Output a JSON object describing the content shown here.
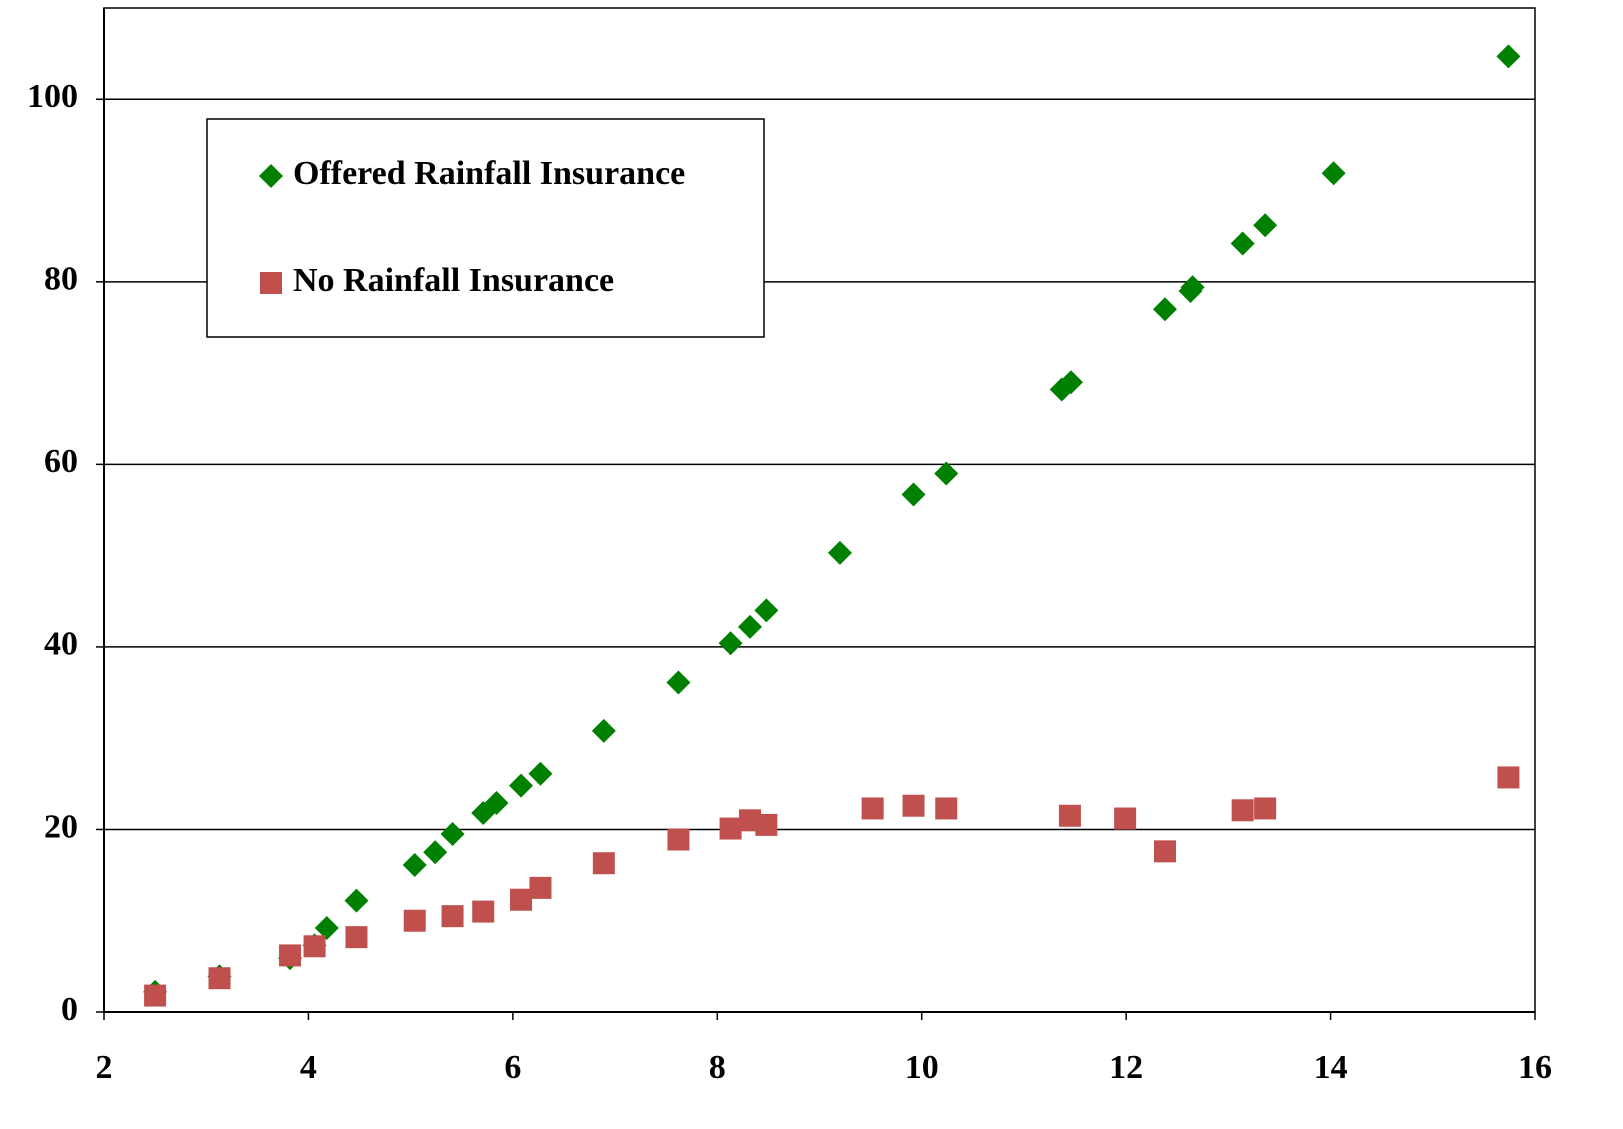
{
  "chart_data": {
    "type": "scatter",
    "xlim": [
      2,
      16
    ],
    "xticks": [
      2,
      4,
      6,
      8,
      10,
      12,
      14,
      16
    ],
    "ylim": [
      0,
      110
    ],
    "yticks": [
      0,
      20,
      40,
      60,
      80,
      100
    ],
    "grid": true,
    "legend": "top-left",
    "series": [
      {
        "name": "Offered Rainfall Insurance",
        "color": "#008000",
        "marker": "diamond",
        "x": [
          2.5,
          3.13,
          3.82,
          4.06,
          4.18,
          4.47,
          5.04,
          5.24,
          5.41,
          5.71,
          5.84,
          6.08,
          6.27,
          6.89,
          7.62,
          8.13,
          8.32,
          8.48,
          9.2,
          9.92,
          10.24,
          11.37,
          11.46,
          12.38,
          12.63,
          12.65,
          13.14,
          13.36,
          14.03,
          15.74
        ],
        "values": [
          2.2,
          3.9,
          5.9,
          7.3,
          9.2,
          12.2,
          16.1,
          17.5,
          19.5,
          21.8,
          22.9,
          24.8,
          26.1,
          30.8,
          36.1,
          40.4,
          42.2,
          44.0,
          50.3,
          56.7,
          59.0,
          68.2,
          69.0,
          77.0,
          79.0,
          79.4,
          84.2,
          86.2,
          91.9,
          104.7
        ]
      },
      {
        "name": "No Rainfall Insurance",
        "color": "#c0504d",
        "marker": "square",
        "x": [
          2.5,
          3.13,
          3.82,
          4.06,
          4.47,
          5.04,
          5.41,
          5.71,
          6.08,
          6.27,
          6.89,
          7.62,
          8.13,
          8.32,
          8.48,
          9.52,
          9.92,
          10.24,
          11.45,
          11.99,
          12.38,
          13.14,
          13.36,
          15.74
        ],
        "values": [
          1.8,
          3.7,
          6.2,
          7.2,
          8.2,
          10.0,
          10.5,
          11.0,
          12.3,
          13.6,
          16.3,
          18.9,
          20.1,
          21.0,
          20.5,
          22.3,
          22.6,
          22.3,
          21.5,
          21.2,
          17.6,
          22.1,
          22.3,
          25.7
        ]
      }
    ]
  }
}
